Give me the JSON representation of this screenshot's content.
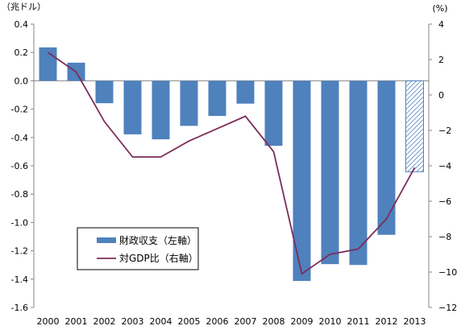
{
  "chart_data": {
    "type": "bar+line",
    "left_axis_unit": "（兆ドル）",
    "right_axis_unit": "(%)",
    "categories": [
      "2000",
      "2001",
      "2002",
      "2003",
      "2004",
      "2005",
      "2006",
      "2007",
      "2008",
      "2009",
      "2010",
      "2011",
      "2012",
      "2013"
    ],
    "left_ylim": [
      -1.6,
      0.4
    ],
    "left_ticks": [
      "0.4",
      "0.2",
      "0.0",
      "-0.2",
      "-0.4",
      "-0.6",
      "-0.8",
      "-1.0",
      "-1.2",
      "-1.4",
      "-1.6"
    ],
    "left_tick_values": [
      0.4,
      0.2,
      0.0,
      -0.2,
      -0.4,
      -0.6,
      -0.8,
      -1.0,
      -1.2,
      -1.4,
      -1.6
    ],
    "right_ylim": [
      -12,
      4
    ],
    "right_ticks": [
      "4",
      "2",
      "0",
      "−2",
      "−4",
      "−6",
      "−8",
      "−10",
      "−12"
    ],
    "right_tick_values": [
      4,
      2,
      0,
      -2,
      -4,
      -6,
      -8,
      -10,
      -12
    ],
    "series": [
      {
        "name": "財政収支（左軸）",
        "type": "bar",
        "axis": "left",
        "color": "#4f81bd",
        "values": [
          0.236,
          0.128,
          -0.158,
          -0.378,
          -0.413,
          -0.318,
          -0.248,
          -0.161,
          -0.459,
          -1.413,
          -1.294,
          -1.3,
          -1.087,
          -0.642
        ],
        "hatched_last": true
      },
      {
        "name": "対GDP比（右軸）",
        "type": "line",
        "axis": "right",
        "color": "#7b2d5a",
        "values": [
          2.4,
          1.3,
          -1.5,
          -3.5,
          -3.5,
          -2.6,
          -1.9,
          -1.2,
          -3.2,
          -10.1,
          -9.0,
          -8.7,
          -7.0,
          -4.1
        ]
      }
    ],
    "grid": false,
    "legend_position": "bottom-left"
  }
}
